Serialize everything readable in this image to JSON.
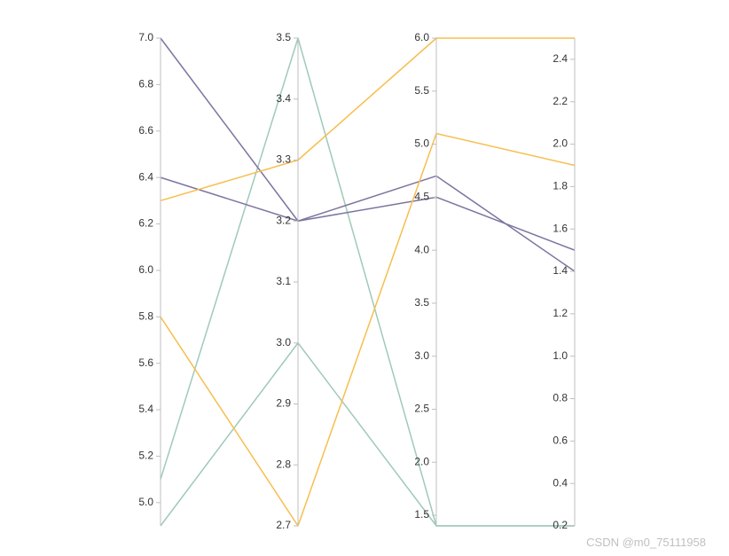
{
  "chart_data": {
    "type": "parallel",
    "axes": [
      {
        "min": 4.9,
        "max": 7.0,
        "ticks": [
          "5.0",
          "5.2",
          "5.4",
          "5.6",
          "5.8",
          "6.0",
          "6.2",
          "6.4",
          "6.6",
          "6.8",
          "7.0"
        ],
        "side": "left"
      },
      {
        "min": 2.7,
        "max": 3.5,
        "ticks": [
          "2.7",
          "2.8",
          "2.9",
          "3.0",
          "3.1",
          "3.2",
          "3.3",
          "3.4",
          "3.5"
        ],
        "side": "left"
      },
      {
        "min": 1.4,
        "max": 6.0,
        "ticks": [
          "1.5",
          "2.0",
          "2.5",
          "3.0",
          "3.5",
          "4.0",
          "4.5",
          "5.0",
          "5.5",
          "6.0"
        ],
        "side": "left"
      },
      {
        "min": 0.2,
        "max": 2.5,
        "ticks": [
          "0.2",
          "0.4",
          "0.6",
          "0.8",
          "1.0",
          "1.2",
          "1.4",
          "1.6",
          "1.8",
          "2.0",
          "2.2",
          "2.4"
        ],
        "side": "left"
      }
    ],
    "series": [
      {
        "color": "#9fcab8",
        "values": [
          5.1,
          3.5,
          1.4,
          0.2
        ]
      },
      {
        "color": "#9fcab8",
        "values": [
          4.9,
          3.0,
          1.4,
          0.2
        ]
      },
      {
        "color": "#7e74a0",
        "values": [
          7.0,
          3.2,
          4.7,
          1.4
        ]
      },
      {
        "color": "#7e74a0",
        "values": [
          6.4,
          3.2,
          4.5,
          1.5
        ]
      },
      {
        "color": "#f7be4e",
        "values": [
          6.3,
          3.3,
          6.0,
          2.5
        ]
      },
      {
        "color": "#f7be4e",
        "values": [
          5.8,
          2.7,
          5.1,
          1.9
        ]
      }
    ],
    "grid": false,
    "legend": "none"
  },
  "watermark": "CSDN @m0_75111958"
}
